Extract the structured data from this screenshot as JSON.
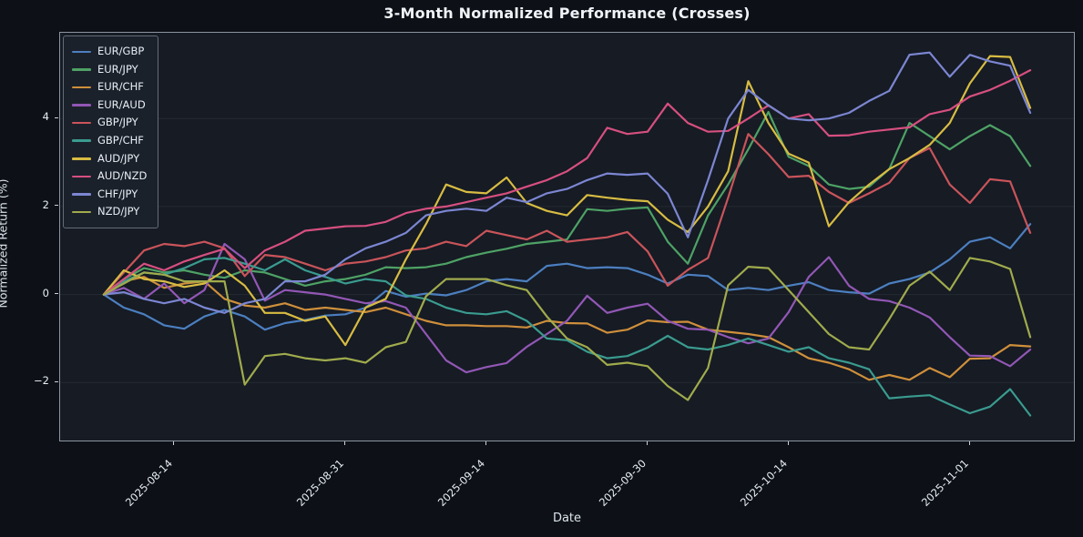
{
  "figure": {
    "background": "#0d1117",
    "axes_background": "#161b24",
    "spine_color": "#8b949e",
    "text_color": "#e6edf3"
  },
  "chart_data": {
    "type": "line",
    "title": "3-Month Normalized Performance (Crosses)",
    "xlabel": "Date",
    "ylabel": "Normalized Return (%)",
    "legend_position": "upper-left",
    "grid": "faint-horizontal",
    "ylim": [
      -3.32,
      5.95
    ],
    "y_ticks": [
      {
        "value": -2,
        "label": "−2"
      },
      {
        "value": 0,
        "label": "0"
      },
      {
        "value": 2,
        "label": "2"
      },
      {
        "value": 4,
        "label": "4"
      }
    ],
    "x_tick_labels": [
      "2025-08-14",
      "2025-08-31",
      "2025-09-14",
      "2025-09-30",
      "2025-10-14",
      "2025-11-01"
    ],
    "x_dates": [
      "2025-08-07",
      "2025-08-09",
      "2025-08-11",
      "2025-08-13",
      "2025-08-15",
      "2025-08-17",
      "2025-08-19",
      "2025-08-21",
      "2025-08-23",
      "2025-08-25",
      "2025-08-27",
      "2025-08-29",
      "2025-08-31",
      "2025-09-02",
      "2025-09-04",
      "2025-09-06",
      "2025-09-08",
      "2025-09-10",
      "2025-09-12",
      "2025-09-14",
      "2025-09-16",
      "2025-09-18",
      "2025-09-20",
      "2025-09-22",
      "2025-09-24",
      "2025-09-26",
      "2025-09-28",
      "2025-09-30",
      "2025-10-02",
      "2025-10-04",
      "2025-10-06",
      "2025-10-08",
      "2025-10-10",
      "2025-10-12",
      "2025-10-14",
      "2025-10-16",
      "2025-10-18",
      "2025-10-20",
      "2025-10-22",
      "2025-10-24",
      "2025-10-26",
      "2025-10-28",
      "2025-10-30",
      "2025-11-01",
      "2025-11-03",
      "2025-11-05",
      "2025-11-07"
    ],
    "series": [
      {
        "name": "EUR/GBP",
        "color": "#4c7fc0",
        "values": [
          0,
          -0.3,
          -0.45,
          -0.7,
          -0.78,
          -0.5,
          -0.35,
          -0.5,
          -0.8,
          -0.65,
          -0.58,
          -0.48,
          -0.45,
          -0.3,
          0.08,
          -0.05,
          0.02,
          -0.02,
          0.1,
          0.3,
          0.35,
          0.3,
          0.65,
          0.7,
          0.6,
          0.62,
          0.6,
          0.45,
          0.25,
          0.45,
          0.42,
          0.1,
          0.15,
          0.1,
          0.2,
          0.28,
          0.1,
          0.05,
          0.02,
          0.25,
          0.35,
          0.5,
          0.8,
          1.2,
          1.3,
          1.05,
          1.6
        ]
      },
      {
        "name": "EUR/JPY",
        "color": "#4ea265",
        "values": [
          0,
          0.35,
          0.6,
          0.5,
          0.55,
          0.45,
          0.38,
          0.55,
          0.5,
          0.35,
          0.2,
          0.3,
          0.35,
          0.45,
          0.62,
          0.6,
          0.62,
          0.7,
          0.85,
          0.95,
          1.04,
          1.15,
          1.2,
          1.25,
          1.94,
          1.9,
          1.95,
          1.98,
          1.2,
          0.7,
          1.8,
          2.5,
          3.3,
          4.15,
          3.13,
          2.92,
          2.5,
          2.4,
          2.45,
          2.85,
          3.9,
          3.6,
          3.3,
          3.6,
          3.85,
          3.6,
          2.92
        ]
      },
      {
        "name": "EUR/CHF",
        "color": "#cf8f3b",
        "values": [
          0,
          0.3,
          0.4,
          0.15,
          0.25,
          0.3,
          -0.1,
          -0.25,
          -0.3,
          -0.2,
          -0.35,
          -0.3,
          -0.35,
          -0.4,
          -0.3,
          -0.45,
          -0.6,
          -0.7,
          -0.7,
          -0.72,
          -0.72,
          -0.75,
          -0.6,
          -0.65,
          -0.66,
          -0.87,
          -0.8,
          -0.59,
          -0.63,
          -0.62,
          -0.8,
          -0.85,
          -0.9,
          -0.97,
          -1.2,
          -1.45,
          -1.55,
          -1.7,
          -1.94,
          -1.83,
          -1.94,
          -1.67,
          -1.88,
          -1.46,
          -1.45,
          -1.15,
          -1.18
        ]
      },
      {
        "name": "EUR/AUD",
        "color": "#9257b5",
        "values": [
          0,
          0.15,
          -0.1,
          0.25,
          -0.2,
          0.1,
          1.15,
          0.8,
          -0.14,
          0.1,
          0.05,
          0,
          -0.1,
          -0.2,
          -0.15,
          -0.3,
          -0.9,
          -1.5,
          -1.77,
          -1.65,
          -1.56,
          -1.19,
          -0.9,
          -0.6,
          -0.03,
          -0.42,
          -0.3,
          -0.21,
          -0.6,
          -0.78,
          -0.8,
          -0.97,
          -1.11,
          -1.0,
          -0.4,
          0.4,
          0.85,
          0.2,
          -0.1,
          -0.15,
          -0.3,
          -0.52,
          -0.97,
          -1.39,
          -1.4,
          -1.63,
          -1.25
        ]
      },
      {
        "name": "GBP/JPY",
        "color": "#c9545a",
        "values": [
          0,
          0.5,
          1.0,
          1.15,
          1.1,
          1.2,
          1.05,
          0.42,
          0.9,
          0.85,
          0.7,
          0.55,
          0.7,
          0.75,
          0.85,
          1.0,
          1.05,
          1.2,
          1.1,
          1.45,
          1.35,
          1.25,
          1.45,
          1.2,
          1.25,
          1.3,
          1.42,
          0.98,
          0.2,
          0.56,
          0.83,
          2.2,
          3.65,
          3.19,
          2.67,
          2.7,
          2.33,
          2.08,
          2.3,
          2.54,
          3.1,
          3.33,
          2.5,
          2.08,
          2.62,
          2.57,
          1.4
        ]
      },
      {
        "name": "GBP/CHF",
        "color": "#3a9b8f",
        "values": [
          0,
          0.3,
          0.5,
          0.45,
          0.6,
          0.8,
          0.83,
          0.7,
          0.55,
          0.8,
          0.55,
          0.4,
          0.25,
          0.35,
          0.3,
          -0.02,
          -0.1,
          -0.3,
          -0.42,
          -0.45,
          -0.38,
          -0.6,
          -1.0,
          -1.04,
          -1.3,
          -1.45,
          -1.4,
          -1.21,
          -0.94,
          -1.2,
          -1.25,
          -1.15,
          -1.0,
          -1.15,
          -1.3,
          -1.2,
          -1.45,
          -1.55,
          -1.7,
          -2.36,
          -2.32,
          -2.29,
          -2.5,
          -2.7,
          -2.55,
          -2.15,
          -2.75
        ]
      },
      {
        "name": "AUD/JPY",
        "color": "#d8bc42",
        "values": [
          0,
          0.55,
          0.35,
          0.3,
          0.17,
          0.25,
          0.55,
          0.2,
          -0.42,
          -0.42,
          -0.6,
          -0.5,
          -1.15,
          -0.3,
          -0.1,
          0.8,
          1.6,
          2.5,
          2.33,
          2.3,
          2.66,
          2.08,
          1.9,
          1.8,
          2.26,
          2.2,
          2.15,
          2.12,
          1.7,
          1.42,
          2.0,
          2.8,
          4.85,
          3.9,
          3.2,
          3.0,
          1.55,
          2.1,
          2.5,
          2.85,
          3.1,
          3.4,
          3.9,
          4.8,
          5.42,
          5.4,
          4.24
        ]
      },
      {
        "name": "AUD/NZD",
        "color": "#d64f7f",
        "values": [
          0,
          0.35,
          0.7,
          0.55,
          0.75,
          0.9,
          1.04,
          0.6,
          1.0,
          1.2,
          1.45,
          1.5,
          1.55,
          1.56,
          1.65,
          1.85,
          1.95,
          2.0,
          2.1,
          2.2,
          2.3,
          2.45,
          2.6,
          2.8,
          3.1,
          3.79,
          3.65,
          3.7,
          4.34,
          3.9,
          3.7,
          3.72,
          4.0,
          4.3,
          4.0,
          4.1,
          3.61,
          3.62,
          3.7,
          3.75,
          3.8,
          4.1,
          4.2,
          4.5,
          4.65,
          4.86,
          5.1
        ]
      },
      {
        "name": "CHF/JPY",
        "color": "#7c86d2",
        "values": [
          0,
          0.05,
          -0.1,
          -0.2,
          -0.1,
          -0.3,
          -0.42,
          -0.2,
          -0.1,
          0.3,
          0.3,
          0.45,
          0.8,
          1.05,
          1.2,
          1.4,
          1.8,
          1.9,
          1.95,
          1.9,
          2.2,
          2.1,
          2.3,
          2.4,
          2.6,
          2.75,
          2.72,
          2.75,
          2.29,
          1.3,
          2.6,
          4.0,
          4.65,
          4.3,
          4.0,
          3.96,
          4.0,
          4.13,
          4.4,
          4.63,
          5.45,
          5.5,
          4.95,
          5.45,
          5.3,
          5.2,
          4.13
        ]
      },
      {
        "name": "NZD/JPY",
        "color": "#a0ab4c",
        "values": [
          0,
          0.25,
          0.5,
          0.45,
          0.3,
          0.3,
          0.3,
          -2.05,
          -1.4,
          -1.35,
          -1.45,
          -1.5,
          -1.45,
          -1.55,
          -1.2,
          -1.08,
          -0.04,
          0.35,
          0.35,
          0.35,
          0.21,
          0.1,
          -0.5,
          -1.0,
          -1.2,
          -1.6,
          -1.55,
          -1.63,
          -2.08,
          -2.4,
          -1.67,
          0.21,
          0.63,
          0.6,
          0.1,
          -0.4,
          -0.9,
          -1.2,
          -1.25,
          -0.56,
          0.2,
          0.52,
          0.1,
          0.83,
          0.75,
          0.58,
          -0.97
        ]
      }
    ]
  }
}
